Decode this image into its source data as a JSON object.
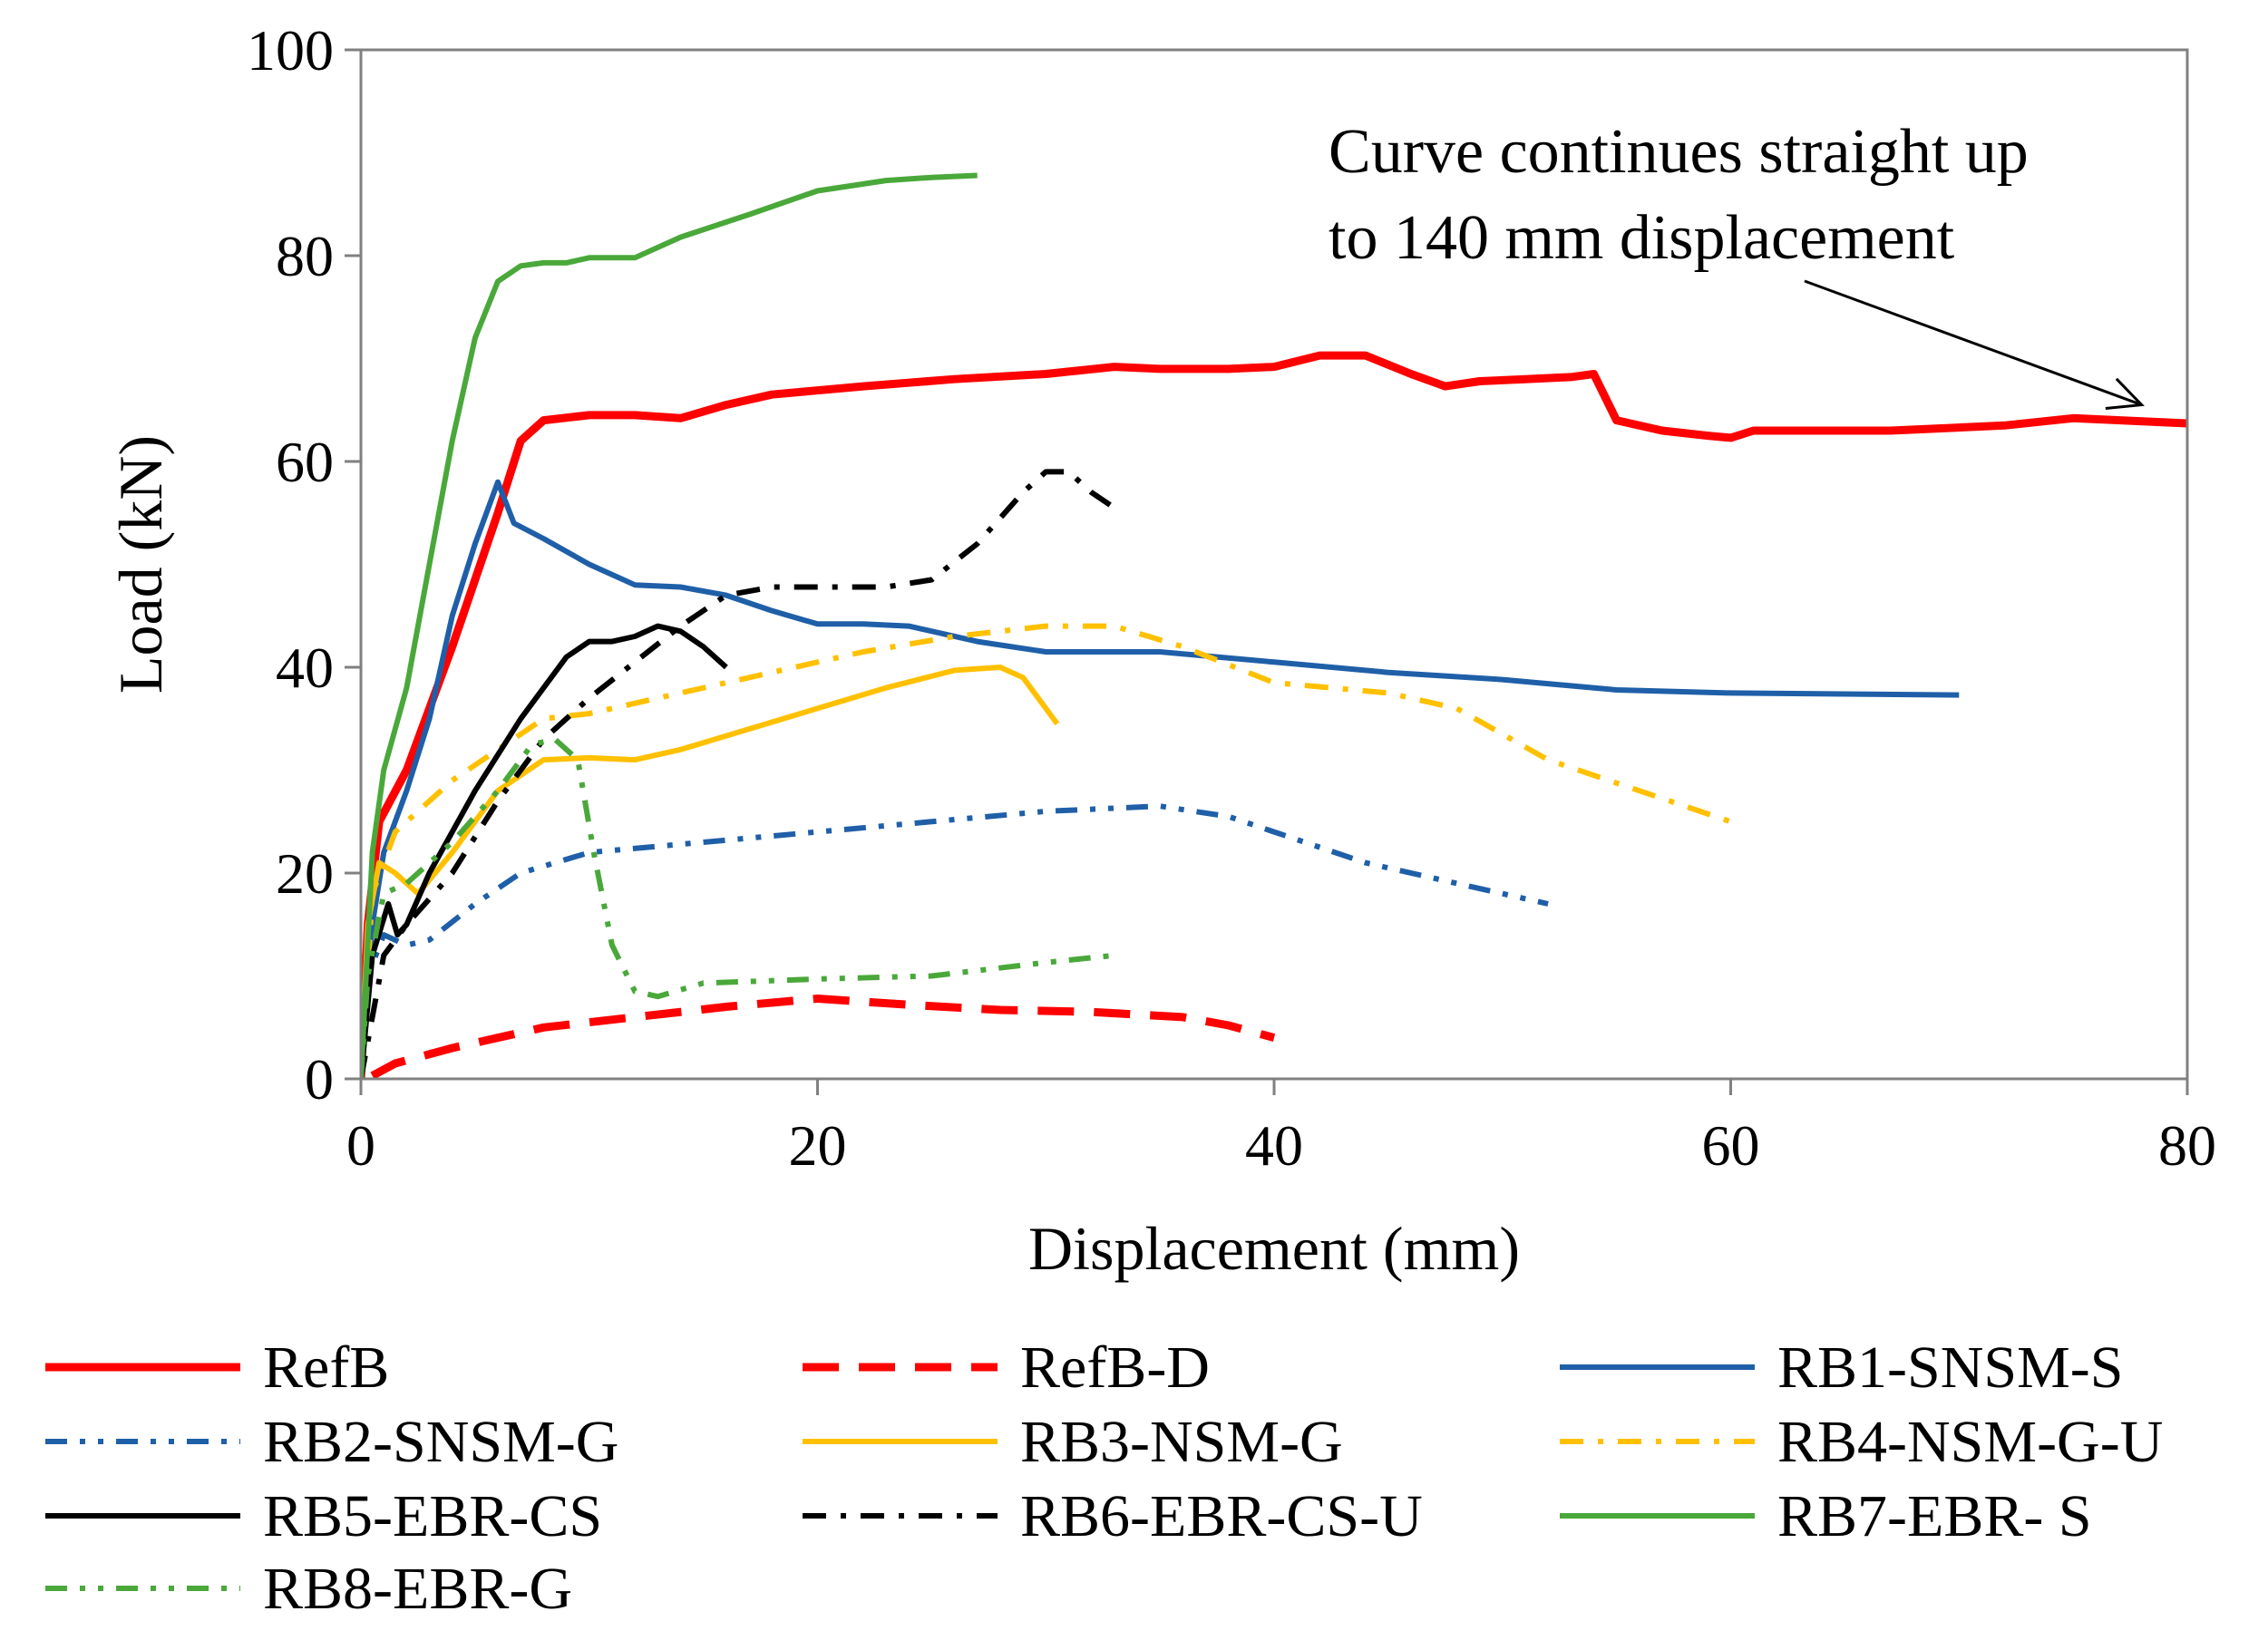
{
  "chart_data": {
    "type": "line",
    "title": "",
    "xlabel": "Displacement (mm)",
    "ylabel": "Load (kN)",
    "xlim": [
      0,
      80
    ],
    "ylim": [
      0,
      100
    ],
    "xticks": [
      0,
      20,
      40,
      60,
      80
    ],
    "yticks": [
      0,
      20,
      40,
      60,
      80,
      100
    ],
    "grid": false,
    "legend_position": "bottom",
    "annotation": {
      "lines": [
        "Curve continues straight up",
        "to 140 mm displacement"
      ],
      "arrow_target": [
        78,
        65.5
      ]
    },
    "series": [
      {
        "name": "RefB",
        "color": "#ff0000",
        "dash": "solid",
        "width": 9,
        "points": [
          [
            0,
            0
          ],
          [
            0.3,
            15
          ],
          [
            0.8,
            25
          ],
          [
            2,
            30
          ],
          [
            4,
            42
          ],
          [
            6,
            55
          ],
          [
            7,
            62
          ],
          [
            8,
            64
          ],
          [
            10,
            64.5
          ],
          [
            12,
            64.5
          ],
          [
            14,
            64.2
          ],
          [
            16,
            65.5
          ],
          [
            18,
            66.5
          ],
          [
            22,
            67.3
          ],
          [
            26,
            68
          ],
          [
            30,
            68.5
          ],
          [
            33,
            69.2
          ],
          [
            35,
            69
          ],
          [
            38,
            69
          ],
          [
            40,
            69.2
          ],
          [
            42,
            70.3
          ],
          [
            44,
            70.3
          ],
          [
            46,
            68.5
          ],
          [
            47.5,
            67.3
          ],
          [
            49,
            67.8
          ],
          [
            51,
            68
          ],
          [
            53,
            68.2
          ],
          [
            54,
            68.5
          ],
          [
            55,
            64
          ],
          [
            57,
            63
          ],
          [
            59,
            62.5
          ],
          [
            60,
            62.3
          ],
          [
            61,
            63
          ],
          [
            63,
            63
          ],
          [
            67,
            63
          ],
          [
            72,
            63.5
          ],
          [
            75,
            64.2
          ],
          [
            80,
            63.7
          ]
        ]
      },
      {
        "name": "RefB-D",
        "color": "#ff0000",
        "dash": "long-dash",
        "width": 9,
        "points": [
          [
            0.5,
            0.3
          ],
          [
            1.5,
            1.5
          ],
          [
            4,
            3
          ],
          [
            8,
            5
          ],
          [
            12,
            6
          ],
          [
            16,
            7
          ],
          [
            20,
            7.8
          ],
          [
            24,
            7.2
          ],
          [
            28,
            6.7
          ],
          [
            32,
            6.5
          ],
          [
            36,
            6
          ],
          [
            38,
            5.2
          ],
          [
            40,
            4
          ]
        ]
      },
      {
        "name": "RB1-SNSM-S",
        "color": "#1f5fa8",
        "dash": "solid",
        "width": 6,
        "points": [
          [
            0,
            0
          ],
          [
            0.5,
            15
          ],
          [
            1,
            22
          ],
          [
            2,
            28
          ],
          [
            3,
            35
          ],
          [
            4,
            45
          ],
          [
            5,
            52
          ],
          [
            6,
            58
          ],
          [
            6.7,
            54
          ],
          [
            8,
            52.5
          ],
          [
            10,
            50
          ],
          [
            12,
            48
          ],
          [
            14,
            47.8
          ],
          [
            16,
            47
          ],
          [
            18,
            45.5
          ],
          [
            20,
            44.2
          ],
          [
            22,
            44.2
          ],
          [
            24,
            44
          ],
          [
            27,
            42.5
          ],
          [
            30,
            41.5
          ],
          [
            35,
            41.5
          ],
          [
            40,
            40.5
          ],
          [
            45,
            39.5
          ],
          [
            50,
            38.8
          ],
          [
            55,
            37.8
          ],
          [
            60,
            37.5
          ],
          [
            65,
            37.4
          ],
          [
            70,
            37.3
          ]
        ]
      },
      {
        "name": "RB2-SNSM-G",
        "color": "#1f5fa8",
        "dash": "dash-dot-dot",
        "width": 6,
        "points": [
          [
            0,
            0
          ],
          [
            0.3,
            10
          ],
          [
            1,
            14
          ],
          [
            2,
            13
          ],
          [
            3,
            13.5
          ],
          [
            5,
            17
          ],
          [
            7,
            20
          ],
          [
            10,
            22
          ],
          [
            15,
            23
          ],
          [
            20,
            24
          ],
          [
            25,
            25
          ],
          [
            30,
            26
          ],
          [
            35,
            26.5
          ],
          [
            38,
            25.5
          ],
          [
            40,
            24
          ],
          [
            44,
            21
          ],
          [
            48,
            19
          ],
          [
            52,
            17
          ]
        ]
      },
      {
        "name": "RB3-NSM-G",
        "color": "#ffc000",
        "dash": "solid",
        "width": 6,
        "points": [
          [
            0,
            0
          ],
          [
            0.3,
            15
          ],
          [
            0.8,
            21
          ],
          [
            1.5,
            20
          ],
          [
            2.5,
            18
          ],
          [
            4,
            22
          ],
          [
            6,
            28
          ],
          [
            8,
            31
          ],
          [
            10,
            31.2
          ],
          [
            12,
            31
          ],
          [
            14,
            32
          ],
          [
            17,
            34
          ],
          [
            20,
            36
          ],
          [
            23,
            38
          ],
          [
            26,
            39.7
          ],
          [
            28,
            40
          ],
          [
            29,
            39
          ],
          [
            30,
            36
          ],
          [
            30.5,
            34.5
          ]
        ]
      },
      {
        "name": "RB4-NSM-G-U",
        "color": "#ffc000",
        "dash": "dash-dot",
        "width": 6,
        "points": [
          [
            0,
            0
          ],
          [
            0.5,
            18
          ],
          [
            1.5,
            24
          ],
          [
            4,
            29
          ],
          [
            6,
            32
          ],
          [
            8,
            35
          ],
          [
            10,
            35.5
          ],
          [
            14,
            37.5
          ],
          [
            18,
            39.5
          ],
          [
            22,
            41.5
          ],
          [
            26,
            43
          ],
          [
            30,
            44
          ],
          [
            33,
            44
          ],
          [
            36,
            42
          ],
          [
            40,
            38.5
          ],
          [
            45,
            37.5
          ],
          [
            48,
            36
          ],
          [
            52,
            31
          ],
          [
            56,
            28
          ],
          [
            60,
            25
          ]
        ]
      },
      {
        "name": "RB5-EBR-CS",
        "color": "#000000",
        "dash": "solid",
        "width": 6,
        "points": [
          [
            0,
            0
          ],
          [
            0.5,
            12
          ],
          [
            1.2,
            17
          ],
          [
            1.6,
            14
          ],
          [
            2,
            15
          ],
          [
            3,
            20
          ],
          [
            5,
            28
          ],
          [
            7,
            35
          ],
          [
            9,
            41
          ],
          [
            10,
            42.5
          ],
          [
            11,
            42.5
          ],
          [
            12,
            43
          ],
          [
            13,
            44
          ],
          [
            14,
            43.5
          ],
          [
            15,
            42
          ],
          [
            16,
            40
          ]
        ]
      },
      {
        "name": "RB6-EBR-CS-U",
        "color": "#000000",
        "dash": "dash-dot",
        "width": 6,
        "points": [
          [
            0,
            0
          ],
          [
            1,
            12
          ],
          [
            2,
            15
          ],
          [
            4,
            20
          ],
          [
            6,
            27
          ],
          [
            8,
            33
          ],
          [
            10,
            37
          ],
          [
            12,
            40.5
          ],
          [
            14,
            44
          ],
          [
            16,
            47
          ],
          [
            18,
            47.8
          ],
          [
            20,
            47.8
          ],
          [
            23,
            47.8
          ],
          [
            25,
            48.5
          ],
          [
            27,
            52
          ],
          [
            29,
            57
          ],
          [
            30,
            59
          ],
          [
            31,
            59
          ],
          [
            32,
            57
          ],
          [
            33,
            55.5
          ]
        ]
      },
      {
        "name": "RB7-EBR- S",
        "color": "#4aa83a",
        "dash": "solid",
        "width": 6,
        "points": [
          [
            0,
            0
          ],
          [
            0.5,
            22
          ],
          [
            1,
            30
          ],
          [
            2,
            38
          ],
          [
            3,
            50
          ],
          [
            4,
            62
          ],
          [
            5,
            72
          ],
          [
            6,
            77.5
          ],
          [
            7,
            79
          ],
          [
            8,
            79.3
          ],
          [
            9,
            79.3
          ],
          [
            10,
            79.8
          ],
          [
            11,
            79.8
          ],
          [
            12,
            79.8
          ],
          [
            14,
            81.8
          ],
          [
            17,
            84
          ],
          [
            20,
            86.3
          ],
          [
            23,
            87.3
          ],
          [
            25,
            87.6
          ],
          [
            27,
            87.8
          ]
        ]
      },
      {
        "name": "RB8-EBR-G",
        "color": "#4aa83a",
        "dash": "dash-dot-dot",
        "width": 6,
        "points": [
          [
            0,
            0
          ],
          [
            0.3,
            10
          ],
          [
            1,
            18
          ],
          [
            2,
            19
          ],
          [
            4,
            23
          ],
          [
            6,
            28
          ],
          [
            7.5,
            32.5
          ],
          [
            8.5,
            33
          ],
          [
            9.5,
            31
          ],
          [
            10.2,
            22
          ],
          [
            11,
            13
          ],
          [
            12,
            8.5
          ],
          [
            13,
            8
          ],
          [
            15,
            9.3
          ],
          [
            20,
            9.7
          ],
          [
            25,
            10
          ],
          [
            30,
            11.3
          ],
          [
            33,
            12
          ]
        ]
      }
    ]
  }
}
